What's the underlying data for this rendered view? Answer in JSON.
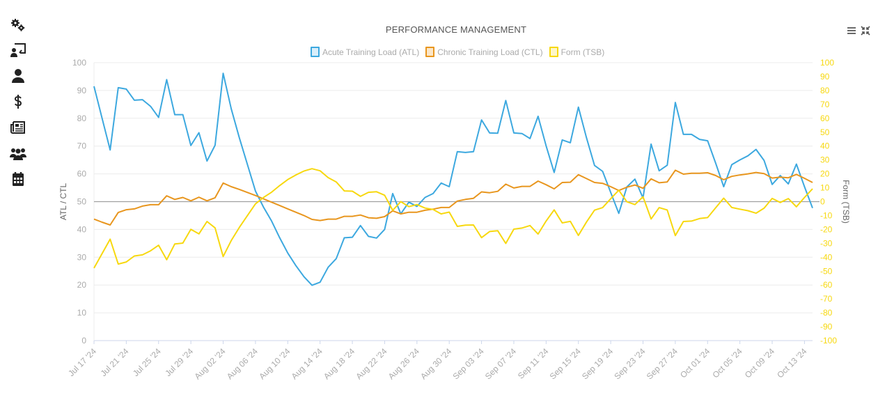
{
  "sidebar": {
    "items": [
      {
        "icon": "gears-icon",
        "name": "settings"
      },
      {
        "icon": "chalkboard-user-icon",
        "name": "coach"
      },
      {
        "icon": "user-icon",
        "name": "profile"
      },
      {
        "icon": "dollar-icon",
        "name": "billing"
      },
      {
        "icon": "newspaper-icon",
        "name": "news"
      },
      {
        "icon": "users-icon",
        "name": "team"
      },
      {
        "icon": "calendar-icon",
        "name": "calendar"
      }
    ]
  },
  "toolbar": {
    "menu_icon": "hamburger-menu-icon",
    "collapse_icon": "compress-icon"
  },
  "chart_data": {
    "type": "line",
    "title": "PERFORMANCE MANAGEMENT",
    "ylabel": "ATL / CTL",
    "y2label": "Form (TSB)",
    "ylim": [
      0,
      100
    ],
    "y2lim": [
      -100,
      100
    ],
    "yticks": [
      0,
      10,
      20,
      30,
      40,
      50,
      60,
      70,
      80,
      90,
      100
    ],
    "y2ticks": [
      -100,
      -90,
      -80,
      -70,
      -60,
      -50,
      -40,
      -30,
      -20,
      -10,
      0,
      10,
      20,
      30,
      40,
      50,
      60,
      70,
      80,
      90,
      100
    ],
    "grid": true,
    "legend_placement": "top",
    "xtick_labels": [
      "Jul 17 '24",
      "Jul 21 '24",
      "Jul 25 '24",
      "Jul 29 '24",
      "Aug 02 '24",
      "Aug 06 '24",
      "Aug 10 '24",
      "Aug 14 '24",
      "Aug 18 '24",
      "Aug 22 '24",
      "Aug 26 '24",
      "Aug 30 '24",
      "Sep 03 '24",
      "Sep 07 '24",
      "Sep 11 '24",
      "Sep 15 '24",
      "Sep 19 '24",
      "Sep 23 '24",
      "Sep 27 '24",
      "Oct 01 '24",
      "Oct 05 '24",
      "Oct 09 '24",
      "Oct 13 '24"
    ],
    "x": [
      "2024-07-17",
      "2024-07-18",
      "2024-07-19",
      "2024-07-20",
      "2024-07-21",
      "2024-07-22",
      "2024-07-23",
      "2024-07-24",
      "2024-07-25",
      "2024-07-26",
      "2024-07-27",
      "2024-07-28",
      "2024-07-29",
      "2024-07-30",
      "2024-07-31",
      "2024-08-01",
      "2024-08-02",
      "2024-08-03",
      "2024-08-04",
      "2024-08-05",
      "2024-08-06",
      "2024-08-07",
      "2024-08-08",
      "2024-08-09",
      "2024-08-10",
      "2024-08-11",
      "2024-08-12",
      "2024-08-13",
      "2024-08-14",
      "2024-08-15",
      "2024-08-16",
      "2024-08-17",
      "2024-08-18",
      "2024-08-19",
      "2024-08-20",
      "2024-08-21",
      "2024-08-22",
      "2024-08-23",
      "2024-08-24",
      "2024-08-25",
      "2024-08-26",
      "2024-08-27",
      "2024-08-28",
      "2024-08-29",
      "2024-08-30",
      "2024-08-31",
      "2024-09-01",
      "2024-09-02",
      "2024-09-03",
      "2024-09-04",
      "2024-09-05",
      "2024-09-06",
      "2024-09-07",
      "2024-09-08",
      "2024-09-09",
      "2024-09-10",
      "2024-09-11",
      "2024-09-12",
      "2024-09-13",
      "2024-09-14",
      "2024-09-15",
      "2024-09-16",
      "2024-09-17",
      "2024-09-18",
      "2024-09-19",
      "2024-09-20",
      "2024-09-21",
      "2024-09-22",
      "2024-09-23",
      "2024-09-24",
      "2024-09-25",
      "2024-09-26",
      "2024-09-27",
      "2024-09-28",
      "2024-09-29",
      "2024-09-30",
      "2024-10-01",
      "2024-10-02",
      "2024-10-03",
      "2024-10-04",
      "2024-10-05",
      "2024-10-06",
      "2024-10-07",
      "2024-10-08",
      "2024-10-09",
      "2024-10-10",
      "2024-10-11",
      "2024-10-12",
      "2024-10-13",
      "2024-10-14"
    ],
    "series": [
      {
        "name": "Acute Training Load (ATL)",
        "axis": "left",
        "color": "#3ca8df",
        "values": [
          91.5,
          80,
          68.6,
          91,
          90.5,
          86.5,
          86.7,
          84.3,
          80.3,
          93.9,
          81.3,
          81.3,
          70.2,
          74.8,
          64.6,
          70.3,
          96.2,
          83.4,
          73,
          63.4,
          53.8,
          48,
          43,
          37,
          31.5,
          27,
          23,
          19.9,
          21,
          26.4,
          29.5,
          37,
          37.2,
          41.4,
          37.5,
          36.9,
          40,
          52.9,
          45.6,
          49.8,
          48.3,
          51.5,
          52.9,
          56.7,
          55.4,
          68,
          67.7,
          68,
          79.4,
          74.7,
          74.6,
          86.4,
          74.7,
          74.5,
          72.7,
          80.7,
          70.1,
          60.5,
          72.2,
          71.2,
          84,
          73,
          63,
          60.9,
          53.3,
          45.8,
          55.3,
          58.1,
          51.3,
          70.7,
          61.1,
          63.1,
          85.7,
          74.2,
          74.2,
          72.4,
          71.9,
          63.8,
          55.4,
          63.3,
          65,
          66.5,
          68.8,
          64.8,
          56.2,
          59.4,
          56.4,
          63.5,
          55.4,
          47.7
        ]
      },
      {
        "name": "Chronic Training Load (CTL)",
        "axis": "left",
        "color": "#e8961e",
        "values": [
          43.7,
          42.6,
          41.6,
          46.1,
          47.1,
          47.4,
          48.4,
          48.9,
          48.9,
          52.1,
          50.8,
          51.5,
          50.3,
          51.6,
          50.3,
          51.4,
          56.7,
          55.4,
          54.4,
          53.3,
          52.2,
          51,
          49.8,
          48.6,
          47.4,
          46.2,
          45,
          43.6,
          43.2,
          43.7,
          43.7,
          44.7,
          44.7,
          45.2,
          44.2,
          44,
          44.6,
          46.7,
          45.6,
          46.2,
          46.2,
          46.9,
          47.3,
          47.9,
          47.9,
          50.2,
          50.8,
          51.2,
          53.5,
          53.2,
          53.7,
          56.3,
          54.9,
          55.5,
          55.5,
          57.4,
          56.1,
          54.6,
          56.9,
          57,
          59.7,
          58.3,
          56.9,
          56.6,
          55.4,
          54,
          55.2,
          56,
          54.8,
          58.2,
          56.8,
          57.1,
          61.3,
          59.9,
          60.2,
          60.2,
          60.4,
          59.4,
          57.9,
          59.1,
          59.6,
          60,
          60.5,
          60.1,
          58.5,
          58.8,
          58.6,
          59.8,
          58.4,
          56.9
        ]
      },
      {
        "name": "Form (TSB)",
        "axis": "right",
        "color": "#f7d80f",
        "values": [
          -47.8,
          -37.4,
          -27,
          -44.9,
          -43.4,
          -39.1,
          -38.3,
          -35.4,
          -31.4,
          -41.8,
          -30.5,
          -29.8,
          -19.9,
          -23.2,
          -14.3,
          -18.9,
          -39.5,
          -28,
          -18.6,
          -10.1,
          -1.6,
          3,
          6.8,
          11.6,
          15.9,
          19.2,
          22,
          23.7,
          22.2,
          17.3,
          14.2,
          7.7,
          7.5,
          3.8,
          6.7,
          7.1,
          4.6,
          -6.2,
          0,
          -3.6,
          -2.1,
          -4.6,
          -5.6,
          -8.8,
          -7.5,
          -17.8,
          -16.9,
          -16.8,
          -25.9,
          -21.5,
          -20.9,
          -30.1,
          -19.8,
          -19,
          -17.2,
          -23.3,
          -14,
          -5.9,
          -15.3,
          -14.2,
          -24.3,
          -14.7,
          -6.1,
          -4.3,
          2.1,
          8.2,
          -0.1,
          -2.1,
          3.5,
          -12.5,
          -4.3,
          -6,
          -24.4,
          -14.3,
          -14,
          -12.2,
          -11.5,
          -4.4,
          2.5,
          -4.2,
          -5.4,
          -6.5,
          -8.3,
          -4.7,
          2.3,
          -0.6,
          2.2,
          -3.7,
          3,
          9.2
        ]
      }
    ]
  }
}
